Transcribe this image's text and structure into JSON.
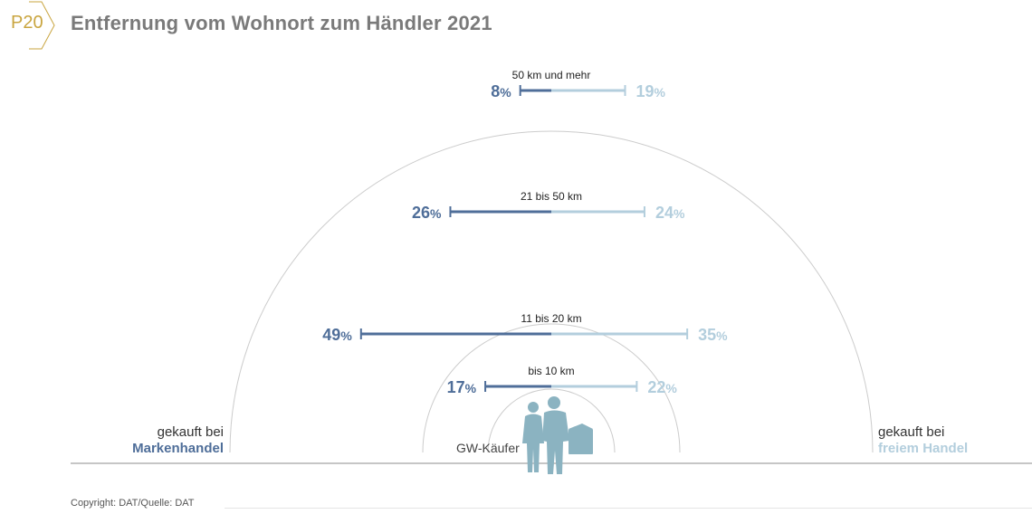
{
  "badge": "P20",
  "title": "Entfernung vom Wohnort zum Händler 2021",
  "legend": {
    "left_line1": "gekauft bei",
    "left_line2": "Markenhandel",
    "right_line1": "gekauft bei",
    "right_line2": "freiem Handel"
  },
  "center_label": "GW-Käufer",
  "copyright": "Copyright: DAT/Quelle: DAT",
  "colors": {
    "markenhandel": "#4f6e99",
    "freier_handel": "#b3cedd",
    "arc": "#cccccc",
    "badge": "#c9a53f",
    "figure": "#8bb3c1"
  },
  "chart_data": {
    "type": "bar",
    "orientation": "diverging-horizontal",
    "categories": [
      "bis 10 km",
      "11 bis 20 km",
      "21 bis 50 km",
      "50 km und mehr"
    ],
    "unit": "%",
    "series": [
      {
        "name": "gekauft bei Markenhandel",
        "values": [
          17,
          49,
          26,
          8
        ]
      },
      {
        "name": "gekauft bei freiem Handel",
        "values": [
          22,
          35,
          24,
          19
        ]
      }
    ]
  }
}
